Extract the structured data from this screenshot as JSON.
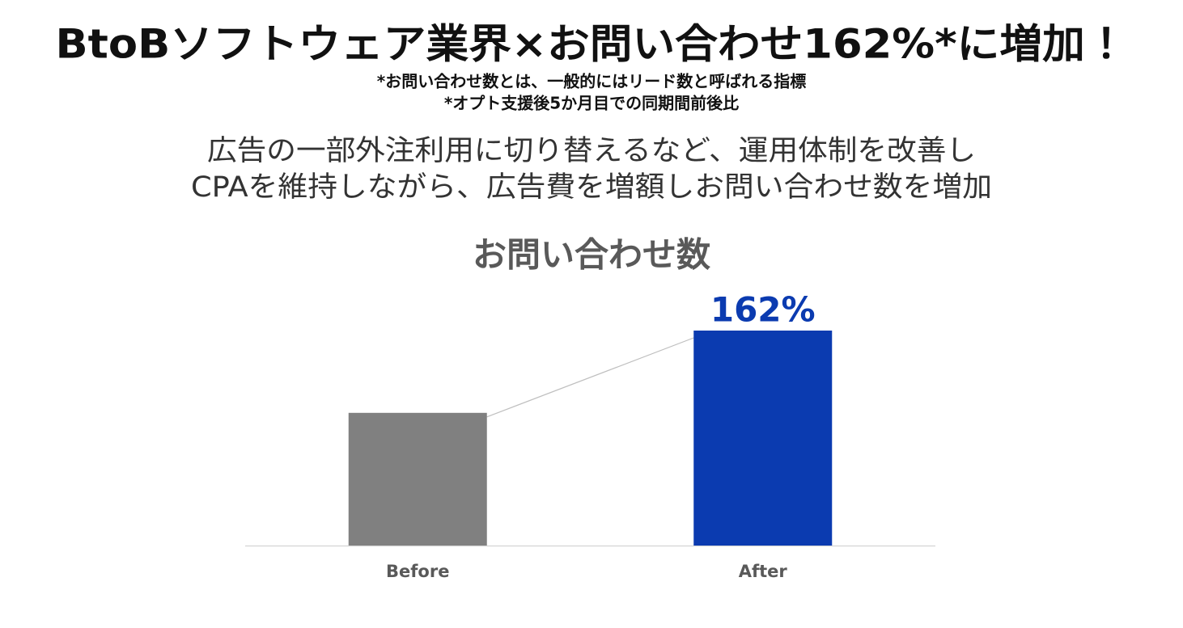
{
  "header": {
    "title": "BtoBソフトウェア業界×お問い合わせ162%*に増加！",
    "notes": [
      "*お問い合わせ数とは、一般的にはリード数と呼ばれる指標",
      "*オプト支援後5か月目での同期間前後比"
    ],
    "description": [
      "広告の一部外注利用に切り替えるなど、運用体制を改善し",
      "CPAを維持しながら、広告費を増額しお問い合わせ数を増加"
    ]
  },
  "chart_data": {
    "type": "bar",
    "title": "お問い合わせ数",
    "categories": [
      "Before",
      "After"
    ],
    "values": [
      100,
      162
    ],
    "value_labels": [
      null,
      "162%"
    ],
    "colors": [
      "#808080",
      "#0b3bb0"
    ]
  }
}
